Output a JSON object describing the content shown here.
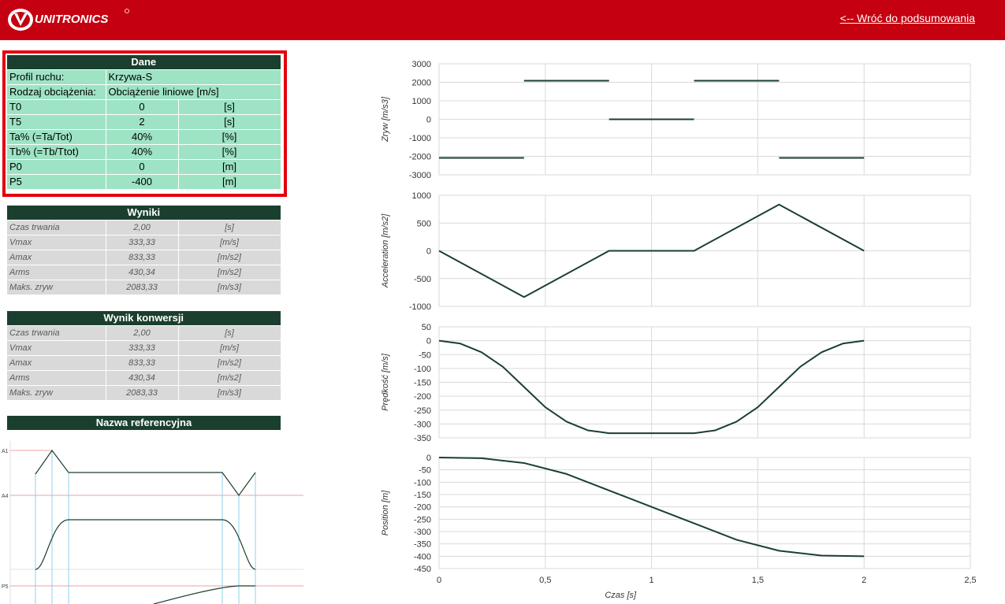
{
  "header": {
    "logo_text": "UNITRONICS",
    "back_link": "<-- Wróć do podsumowania"
  },
  "dane": {
    "title": "Dane",
    "rows": [
      {
        "label": "Profil ruchu:",
        "value": "Krzywa-S",
        "unit": ""
      },
      {
        "label": "Rodzaj obciążenia:",
        "value": "Obciążenie liniowe [m/s]",
        "unit": ""
      },
      {
        "label": "T0",
        "value": "0",
        "unit": "[s]"
      },
      {
        "label": "T5",
        "value": "2",
        "unit": "[s]"
      },
      {
        "label": "Ta% (=Ta/Tot)",
        "value": "40%",
        "unit": "[%]"
      },
      {
        "label": "Tb% (=Tb/Ttot)",
        "value": "40%",
        "unit": "[%]"
      },
      {
        "label": "P0",
        "value": "0",
        "unit": "[m]"
      },
      {
        "label": "P5",
        "value": "-400",
        "unit": "[m]"
      }
    ]
  },
  "wyniki": {
    "title": "Wyniki",
    "rows": [
      {
        "label": "Czas trwania",
        "value": "2,00",
        "unit": "[s]"
      },
      {
        "label": "Vmax",
        "value": "333,33",
        "unit": "[m/s]"
      },
      {
        "label": "Amax",
        "value": "833,33",
        "unit": "[m/s2]"
      },
      {
        "label": "Arms",
        "value": "430,34",
        "unit": "[m/s2]"
      },
      {
        "label": "Maks. zryw",
        "value": "2083,33",
        "unit": "[m/s3]"
      }
    ]
  },
  "konwersja": {
    "title": "Wynik konwersji",
    "rows": [
      {
        "label": "Czas trwania",
        "value": "2,00",
        "unit": "[s]"
      },
      {
        "label": "Vmax",
        "value": "333,33",
        "unit": "[m/s]"
      },
      {
        "label": "Amax",
        "value": "833,33",
        "unit": "[m/s2]"
      },
      {
        "label": "Arms",
        "value": "430,34",
        "unit": "[m/s2]"
      },
      {
        "label": "Maks. zryw",
        "value": "2083,33",
        "unit": "[m/s3]"
      }
    ]
  },
  "reference": {
    "title": "Nazwa referencyjna",
    "labels": [
      "A1",
      "A4",
      "P5"
    ]
  },
  "colors": {
    "header": "#c50010",
    "dark_green": "#1b3f2f",
    "light_green": "#9de3c4",
    "grey": "#d9d9d9",
    "curve": "#1b3f2f"
  },
  "chart_data": [
    {
      "type": "line",
      "ylabel": "Zryw [m/s3]",
      "ylim": [
        -3000,
        3000
      ],
      "yticks": [
        3000,
        2000,
        1000,
        0,
        -1000,
        -2000,
        -3000
      ],
      "xlim": [
        0,
        2.5
      ],
      "segments": [
        [
          [
            0,
            -2083.33
          ],
          [
            0.4,
            -2083.33
          ]
        ],
        [
          [
            0.4,
            2083.33
          ],
          [
            0.8,
            2083.33
          ]
        ],
        [
          [
            0.8,
            0
          ],
          [
            1.2,
            0
          ]
        ],
        [
          [
            1.2,
            2083.33
          ],
          [
            1.6,
            2083.33
          ]
        ],
        [
          [
            1.6,
            -2083.33
          ],
          [
            2.0,
            -2083.33
          ]
        ]
      ]
    },
    {
      "type": "line",
      "ylabel": "Acceleration [m/s2]",
      "ylim": [
        -1000,
        1000
      ],
      "yticks": [
        1000,
        500,
        0,
        -500,
        -1000
      ],
      "xlim": [
        0,
        2.5
      ],
      "x": [
        0,
        0.4,
        0.8,
        1.2,
        1.6,
        2.0
      ],
      "y": [
        0,
        -833.33,
        0,
        0,
        833.33,
        0
      ]
    },
    {
      "type": "line",
      "ylabel": "Prędkość [m/s]",
      "ylim": [
        -350,
        50
      ],
      "yticks": [
        50,
        0,
        -50,
        -100,
        -150,
        -200,
        -250,
        -300,
        -350
      ],
      "xlim": [
        0,
        2.5
      ],
      "x": [
        0,
        0.1,
        0.2,
        0.3,
        0.4,
        0.5,
        0.6,
        0.7,
        0.8,
        1.2,
        1.3,
        1.4,
        1.5,
        1.6,
        1.7,
        1.8,
        1.9,
        2.0
      ],
      "y": [
        0,
        -10.4,
        -41.7,
        -93.8,
        -166.7,
        -239.6,
        -291.7,
        -322.9,
        -333.3,
        -333.3,
        -322.9,
        -291.7,
        -239.6,
        -166.7,
        -93.8,
        -41.7,
        -10.4,
        0
      ]
    },
    {
      "type": "line",
      "ylabel": "Position [m]",
      "xlabel": "Czas [s]",
      "ylim": [
        -450,
        0
      ],
      "yticks": [
        0,
        -50,
        -100,
        -150,
        -200,
        -250,
        -300,
        -350,
        -400,
        -450
      ],
      "xlim": [
        0,
        2.5
      ],
      "xticks": [
        "0",
        "0,5",
        "1",
        "1,5",
        "2",
        "2,5"
      ],
      "x": [
        0,
        0.2,
        0.4,
        0.6,
        0.8,
        1.0,
        1.2,
        1.4,
        1.6,
        1.8,
        2.0
      ],
      "y": [
        0,
        -2.8,
        -22.2,
        -66.7,
        -133.3,
        -200,
        -266.7,
        -333.3,
        -377.8,
        -397.2,
        -400
      ]
    }
  ]
}
